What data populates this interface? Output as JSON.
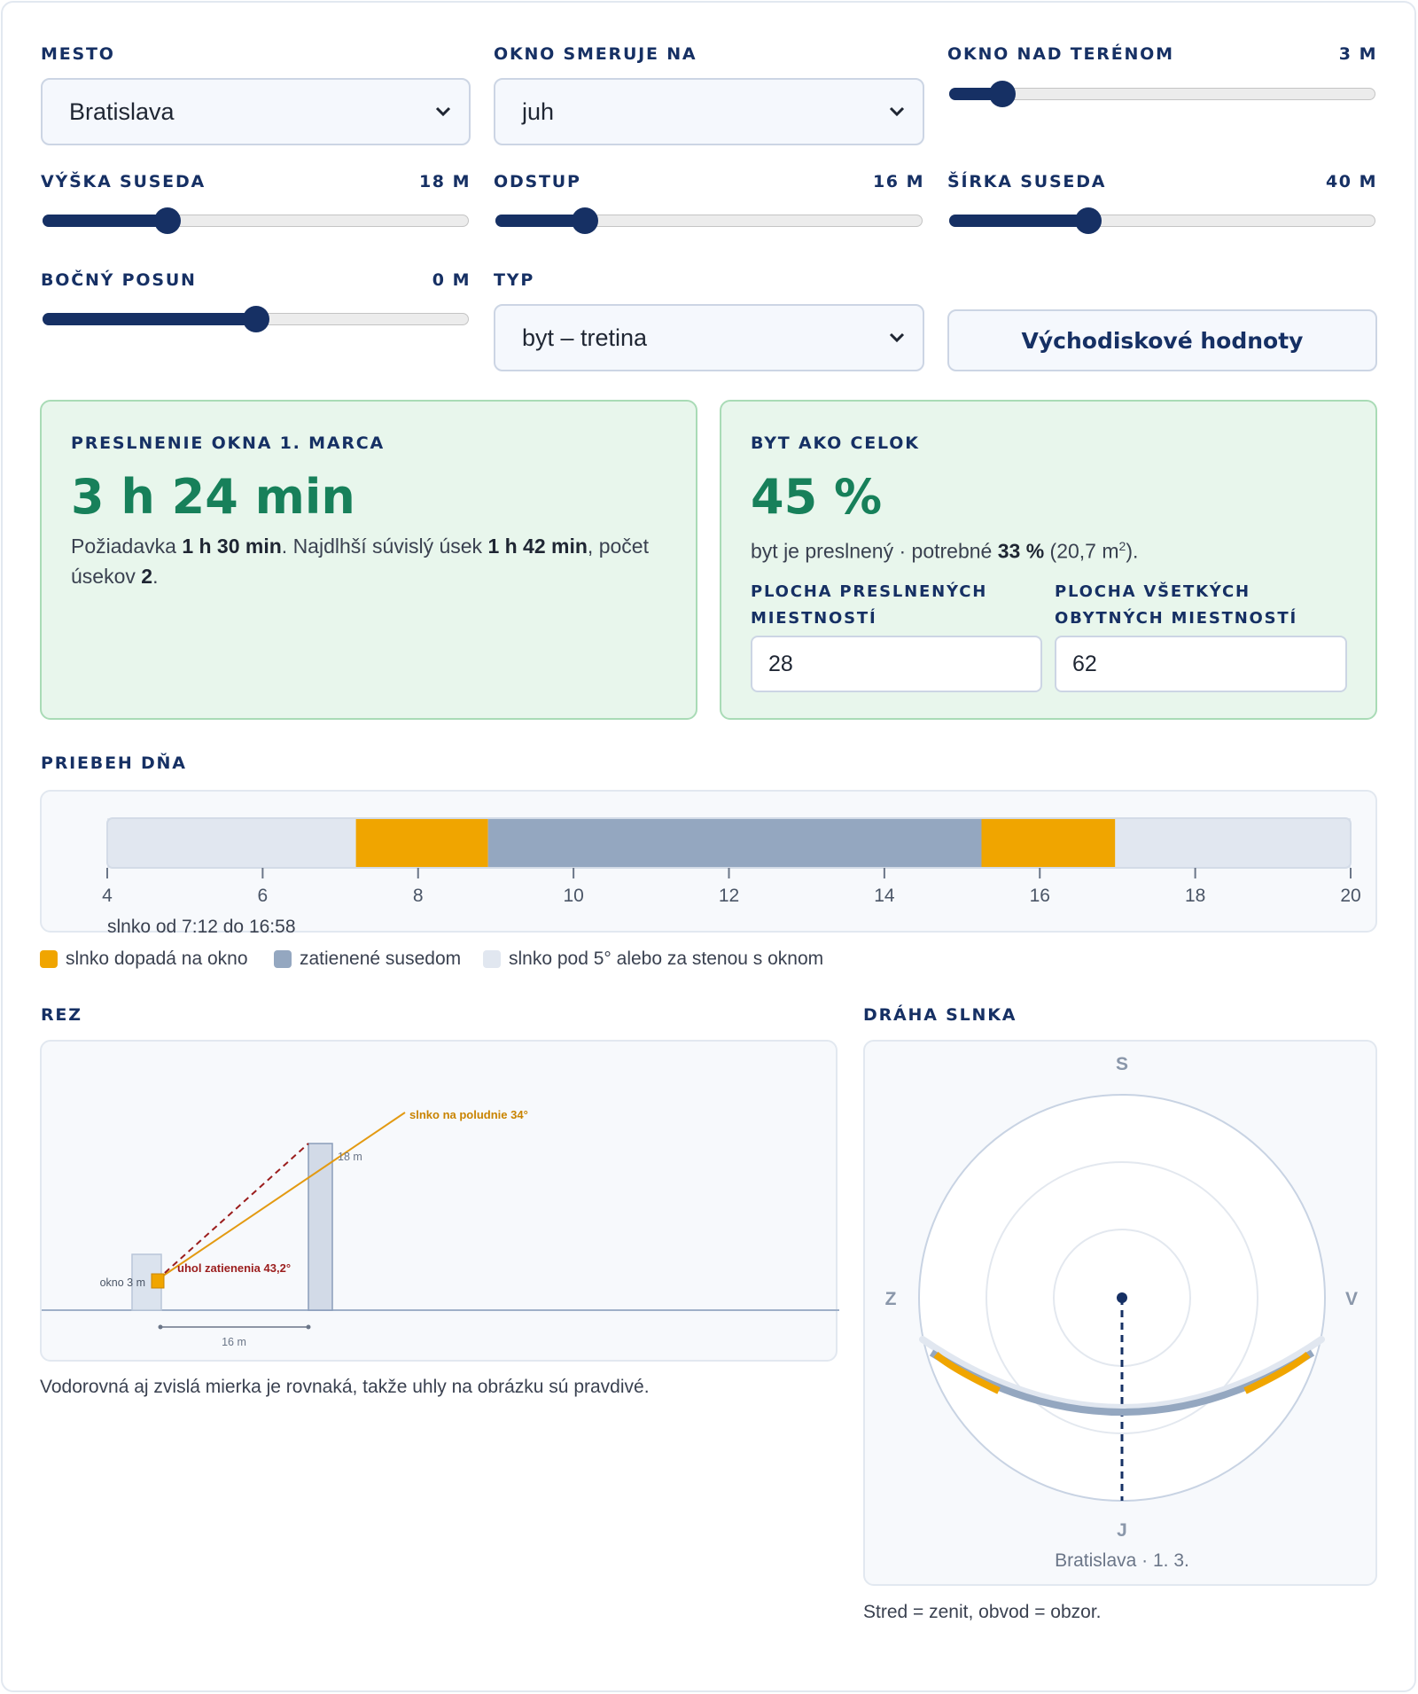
{
  "controls": {
    "city": {
      "label": "MESTO",
      "value": "Bratislava"
    },
    "orientation": {
      "label": "OKNO SMERUJE NA",
      "value": "juh"
    },
    "window_height": {
      "label": "OKNO NAD TERÉNOM",
      "value_text": "3 M",
      "fraction": 0.1
    },
    "neighbor_height": {
      "label": "VÝŠKA SUSEDA",
      "value_text": "18 M",
      "fraction": 0.28
    },
    "distance": {
      "label": "ODSTUP",
      "value_text": "16 M",
      "fraction": 0.19
    },
    "neighbor_width": {
      "label": "ŠÍRKA SUSEDA",
      "value_text": "40 M",
      "fraction": 0.315
    },
    "lateral_offset": {
      "label": "BOČNÝ POSUN",
      "value_text": "0 M",
      "fraction": 0.5
    },
    "type": {
      "label": "TYP",
      "value": "byt – tretina"
    },
    "reset_button": "Východiskové hodnoty"
  },
  "window_card": {
    "title": "PRESLNENIE OKNA 1. MARCA",
    "value": "3 h 24 min",
    "t1": "Požiadavka ",
    "b1": "1 h 30 min",
    "t2": ". Najdlhší súvislý úsek ",
    "b2": "1 h 42 min",
    "t3": ", počet úsekov ",
    "b3": "2",
    "t4": "."
  },
  "flat_card": {
    "title": "BYT AKO CELOK",
    "value": "45 %",
    "t1": "byt je preslnený · potrebné ",
    "b1": "33 %",
    "t2": " (20,7 m",
    "sup": "2",
    "t3": ").",
    "sunlit_area_label": "PLOCHA PRESLNENÝCH MIESTNOSTÍ",
    "sunlit_area_value": "28",
    "total_area_label": "PLOCHA VŠETKÝCH OBYTNÝCH MIESTNOSTÍ",
    "total_area_value": "62"
  },
  "day": {
    "title": "PRIEBEH DŇA",
    "hours": [
      4,
      20
    ],
    "ticks": [
      "4",
      "6",
      "8",
      "10",
      "12",
      "14",
      "16",
      "18",
      "20"
    ],
    "segments": [
      {
        "from": 4,
        "to": 7.2,
        "state": "below"
      },
      {
        "from": 7.2,
        "to": 8.9,
        "state": "sun"
      },
      {
        "from": 8.9,
        "to": 15.25,
        "state": "shaded"
      },
      {
        "from": 15.25,
        "to": 16.97,
        "state": "sun"
      },
      {
        "from": 16.97,
        "to": 20,
        "state": "below"
      }
    ],
    "caption": "slnko od 7:12 do 16:58",
    "legend": [
      {
        "label": "slnko dopadá na okno",
        "color": "#f0a500"
      },
      {
        "label": "zatienené susedom",
        "color": "#94a7c0"
      },
      {
        "label": "slnko pod 5° alebo za stenou s oknom",
        "color": "#e1e7f0"
      }
    ]
  },
  "section": {
    "title": "REZ",
    "window_label": "okno 3 m",
    "neighbor_label": "18 m",
    "sun_label": "slnko na poludnie 34°",
    "angle_label": "uhol zatienenia 43,2°",
    "distance_label": "16 m",
    "note": "Vodorovná aj zvislá mierka je rovnaká, takže uhly na obrázku sú pravdivé.",
    "window_height_m": 3,
    "neighbor_height_m": 18,
    "distance_m": 16
  },
  "sunpath": {
    "title": "DRÁHA SLNKA",
    "north": "S",
    "south": "J",
    "west": "Z",
    "east": "V",
    "caption": "Bratislava · 1. 3.",
    "note": "Stred = zenit, obvod = obzor.",
    "colors": {
      "sun": "#f0a500",
      "shaded": "#94a7c0",
      "below": "#e1e7f0",
      "accent": "#163064"
    }
  }
}
